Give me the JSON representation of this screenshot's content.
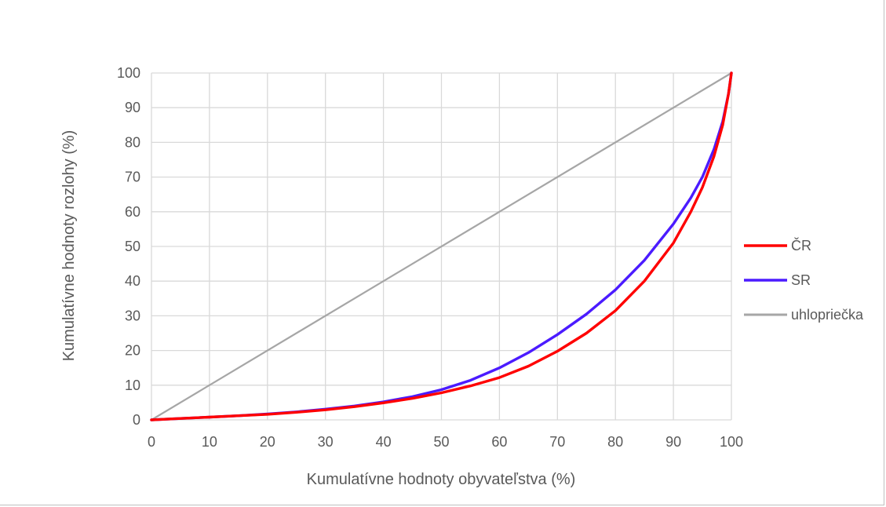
{
  "chart_data": {
    "type": "line",
    "title": "",
    "xlabel": "Kumulatívne hodnoty obyvateľstva (%)",
    "ylabel": "Kumulatívne hodnoty rozlohy (%)",
    "xlim": [
      0,
      100
    ],
    "ylim": [
      0,
      100
    ],
    "xticks": [
      "0",
      "10",
      "20",
      "30",
      "40",
      "50",
      "60",
      "70",
      "80",
      "90",
      "100"
    ],
    "yticks": [
      "0",
      "10",
      "20",
      "30",
      "40",
      "50",
      "60",
      "70",
      "80",
      "90",
      "100"
    ],
    "grid": true,
    "legend_position": "right",
    "series": [
      {
        "name": "ČR",
        "color": "#ff0000",
        "points": [
          [
            0,
            0
          ],
          [
            5,
            0.4
          ],
          [
            10,
            0.8
          ],
          [
            15,
            1.2
          ],
          [
            20,
            1.6
          ],
          [
            25,
            2.2
          ],
          [
            30,
            2.9
          ],
          [
            35,
            3.8
          ],
          [
            40,
            4.9
          ],
          [
            45,
            6.2
          ],
          [
            50,
            7.8
          ],
          [
            55,
            9.8
          ],
          [
            60,
            12.2
          ],
          [
            65,
            15.5
          ],
          [
            70,
            19.8
          ],
          [
            75,
            25
          ],
          [
            80,
            31.5
          ],
          [
            85,
            40
          ],
          [
            90,
            51
          ],
          [
            93,
            60
          ],
          [
            95,
            67
          ],
          [
            97,
            76
          ],
          [
            98.5,
            85
          ],
          [
            99.5,
            94
          ],
          [
            100,
            100
          ]
        ]
      },
      {
        "name": "SR",
        "color": "#4b1bff",
        "points": [
          [
            0,
            0
          ],
          [
            5,
            0.4
          ],
          [
            10,
            0.8
          ],
          [
            15,
            1.2
          ],
          [
            20,
            1.7
          ],
          [
            25,
            2.3
          ],
          [
            30,
            3.1
          ],
          [
            35,
            4
          ],
          [
            40,
            5.2
          ],
          [
            45,
            6.7
          ],
          [
            50,
            8.7
          ],
          [
            55,
            11.4
          ],
          [
            60,
            15
          ],
          [
            65,
            19.4
          ],
          [
            70,
            24.6
          ],
          [
            75,
            30.5
          ],
          [
            80,
            37.5
          ],
          [
            85,
            46
          ],
          [
            90,
            56.5
          ],
          [
            93,
            64
          ],
          [
            95,
            70
          ],
          [
            97,
            78
          ],
          [
            98.5,
            86
          ],
          [
            99.5,
            94
          ],
          [
            100,
            100
          ]
        ]
      },
      {
        "name": "uhlopriečka",
        "color": "#a6a6a6",
        "points": [
          [
            0,
            0
          ],
          [
            100,
            100
          ]
        ]
      }
    ]
  }
}
